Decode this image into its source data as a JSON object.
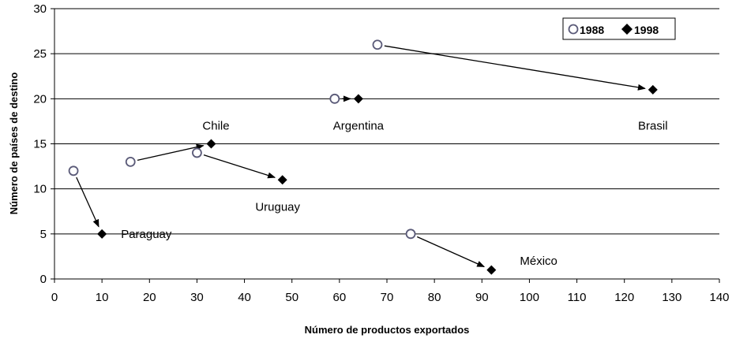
{
  "chart_data": {
    "type": "scatter",
    "title": "",
    "xlabel": "Número de productos exportados",
    "ylabel": "Número de países de destino",
    "xlim": [
      0,
      140
    ],
    "ylim": [
      0,
      30
    ],
    "xticks": [
      0,
      10,
      20,
      30,
      40,
      50,
      60,
      70,
      80,
      90,
      100,
      110,
      120,
      130,
      140
    ],
    "yticks": [
      0,
      5,
      10,
      15,
      20,
      25,
      30
    ],
    "grid": "horizontal",
    "legend_placement": "top-right",
    "series": [
      {
        "name": "1988",
        "marker": "open-circle",
        "color": "#5a5a78",
        "points": [
          {
            "label": "Paraguay",
            "x": 4,
            "y": 12
          },
          {
            "label": "Chile",
            "x": 16,
            "y": 13
          },
          {
            "label": "Uruguay",
            "x": 30,
            "y": 14
          },
          {
            "label": "Argentina",
            "x": 59,
            "y": 20
          },
          {
            "label": "Brasil",
            "x": 68,
            "y": 26
          },
          {
            "label": "México",
            "x": 75,
            "y": 5
          }
        ]
      },
      {
        "name": "1998",
        "marker": "filled-diamond",
        "color": "#000000",
        "points": [
          {
            "label": "Paraguay",
            "x": 10,
            "y": 5
          },
          {
            "label": "Chile",
            "x": 33,
            "y": 15
          },
          {
            "label": "Uruguay",
            "x": 48,
            "y": 11
          },
          {
            "label": "Argentina",
            "x": 64,
            "y": 20
          },
          {
            "label": "Brasil",
            "x": 126,
            "y": 21
          },
          {
            "label": "México",
            "x": 92,
            "y": 1
          }
        ]
      }
    ],
    "annotations": [
      {
        "text": "Paraguay",
        "x": 14,
        "y": 5
      },
      {
        "text": "Chile",
        "x": 34,
        "y": 17
      },
      {
        "text": "Uruguay",
        "x": 47,
        "y": 8
      },
      {
        "text": "Argentina",
        "x": 64,
        "y": 17
      },
      {
        "text": "Brasil",
        "x": 126,
        "y": 17
      },
      {
        "text": "México",
        "x": 98,
        "y": 2
      }
    ]
  }
}
